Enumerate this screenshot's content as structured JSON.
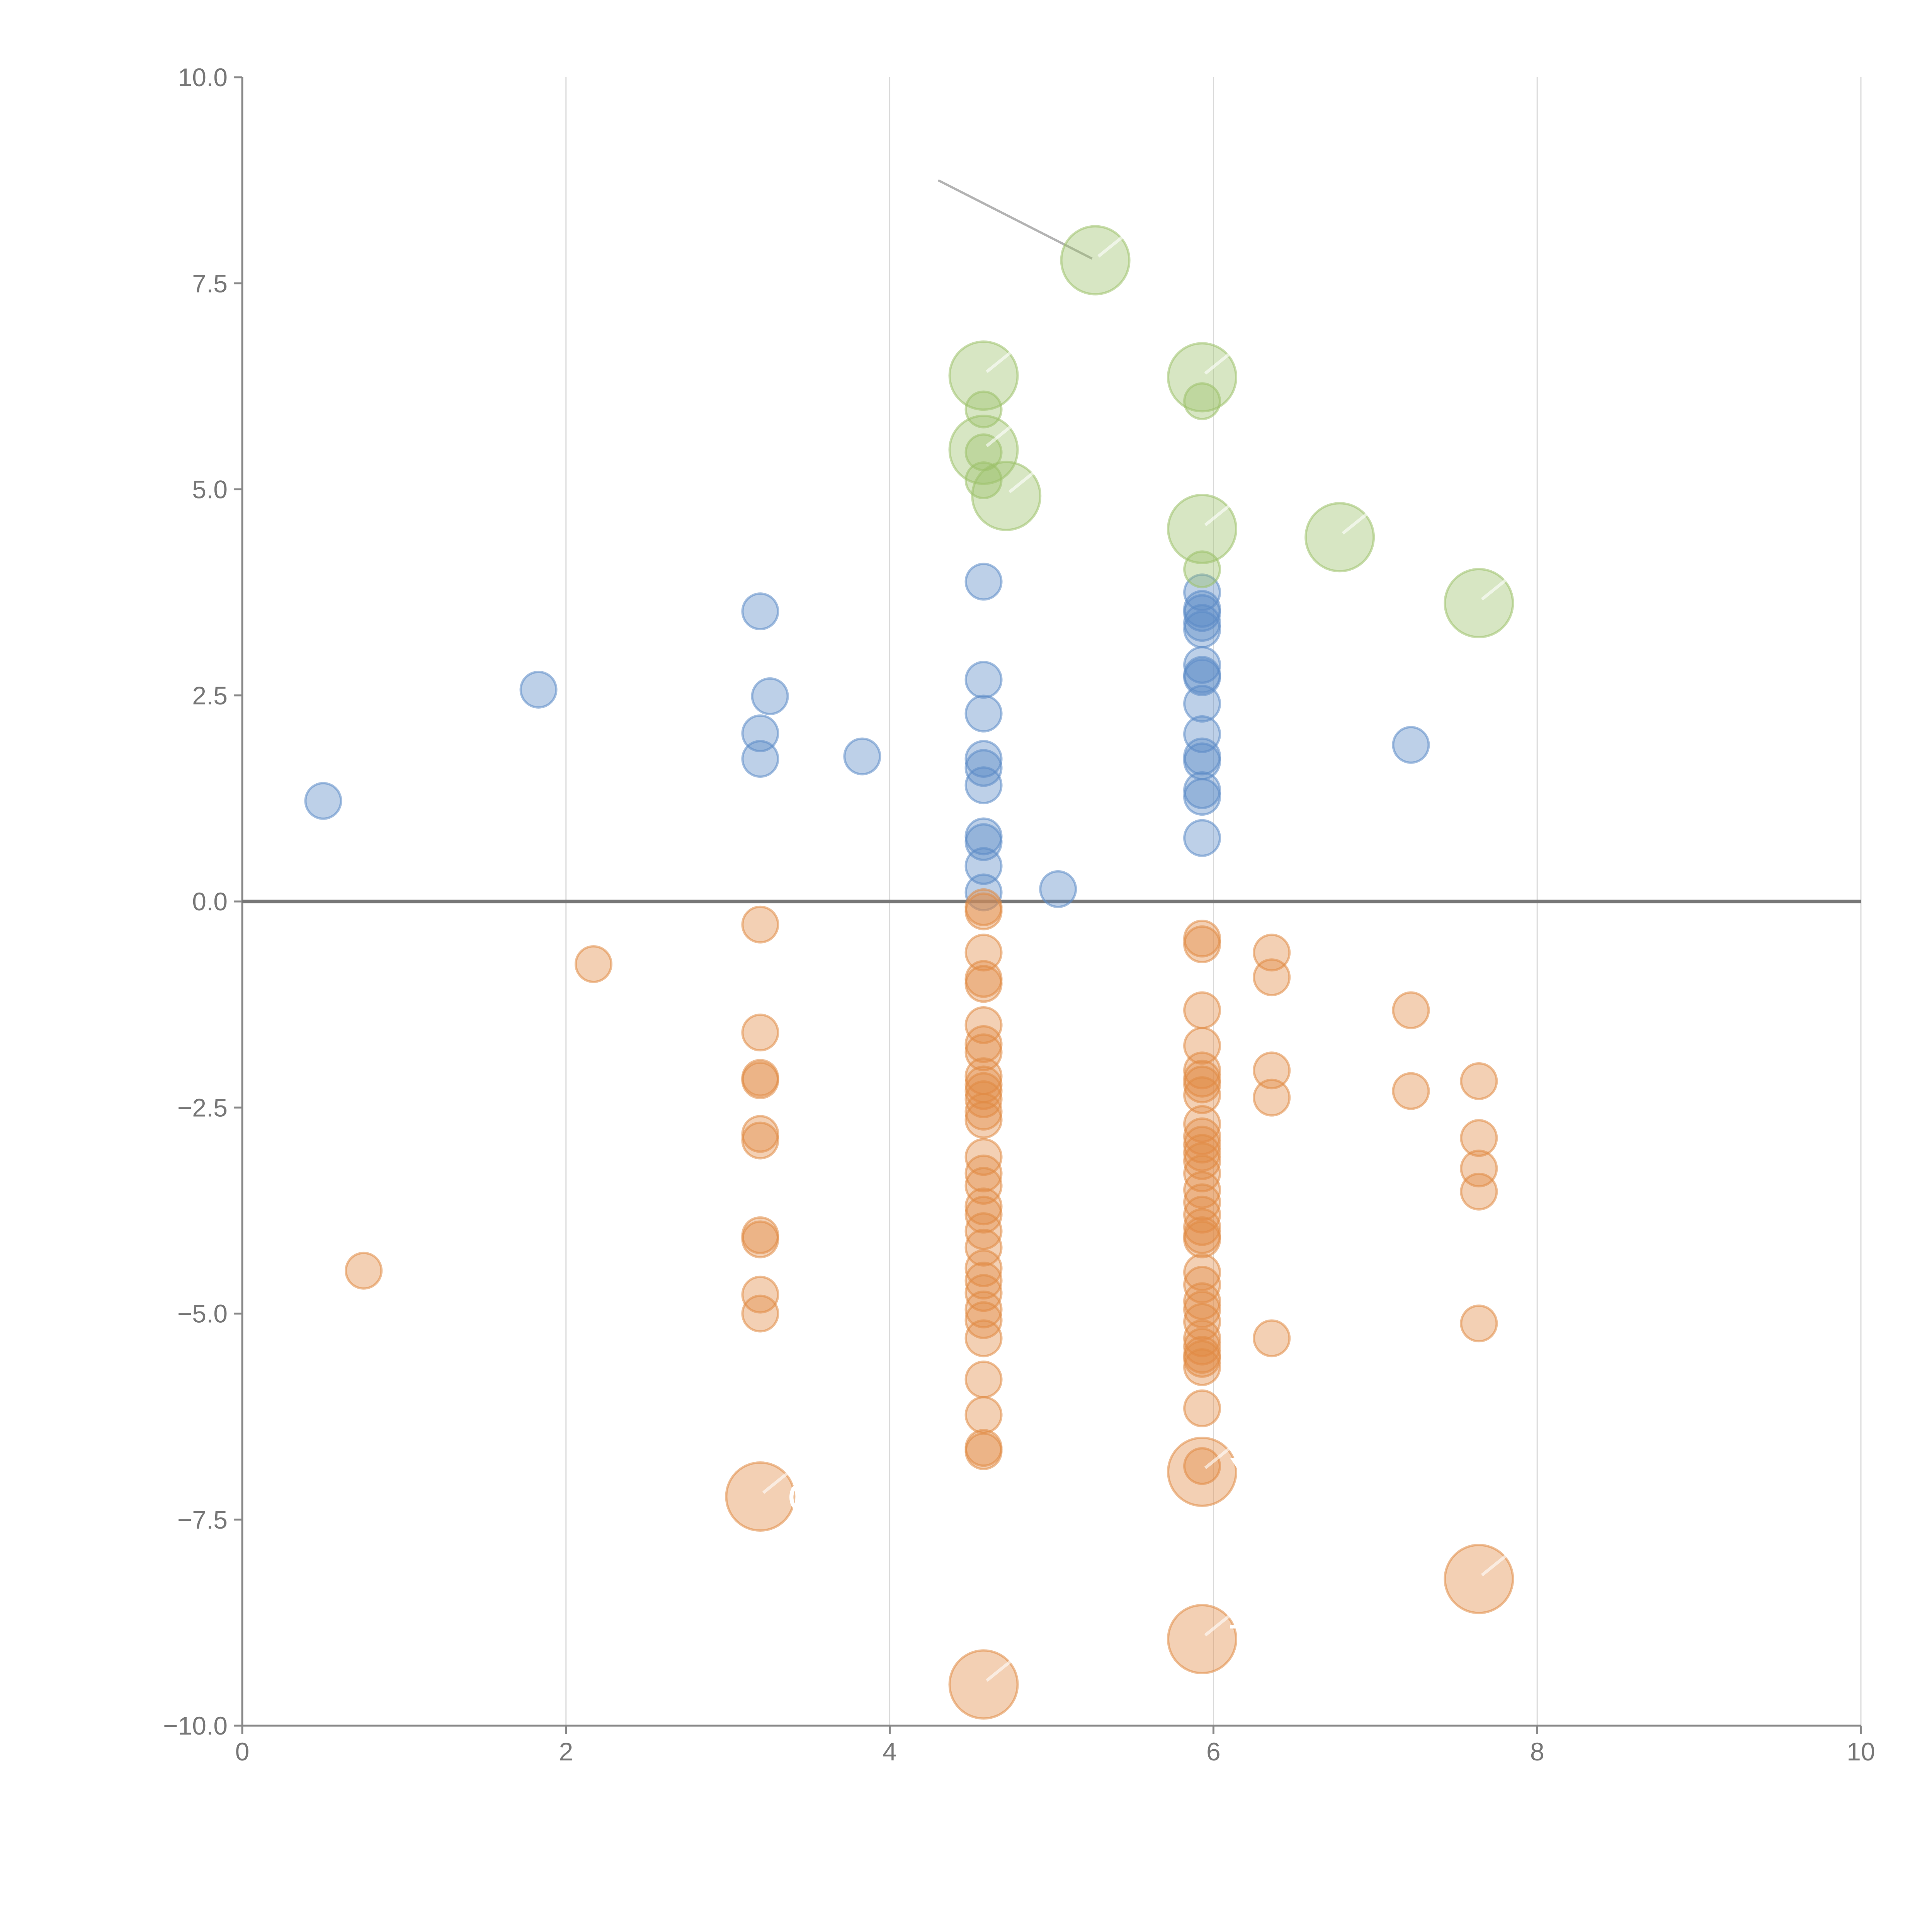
{
  "chart_data": {
    "type": "scatter",
    "title": "",
    "xlabel": "",
    "ylabel": "",
    "xlim": [
      0,
      10
    ],
    "ylim": [
      -10,
      10
    ],
    "x_ticks": [
      "0",
      "2",
      "4",
      "6",
      "8",
      "10"
    ],
    "y_ticks": [
      "10.0",
      "7.5",
      "5.0",
      "2.5",
      "0.0",
      "−2.5",
      "−5.0",
      "−7.5",
      "−10.0"
    ],
    "grid": "vertical",
    "zero_line": 0,
    "legend": "none",
    "series": [
      {
        "name": "blue",
        "color": "#5b8ac6",
        "size": "small",
        "points": [
          [
            0.5,
            1.22
          ],
          [
            1.83,
            2.57
          ],
          [
            3.2,
            3.52
          ],
          [
            3.26,
            2.49
          ],
          [
            3.2,
            2.04
          ],
          [
            3.2,
            1.73
          ],
          [
            3.83,
            1.76
          ],
          [
            4.58,
            3.88
          ],
          [
            4.58,
            2.69
          ],
          [
            4.58,
            2.28
          ],
          [
            4.58,
            1.73
          ],
          [
            4.58,
            1.62
          ],
          [
            4.58,
            1.41
          ],
          [
            4.58,
            0.79
          ],
          [
            4.58,
            0.72
          ],
          [
            4.58,
            0.43
          ],
          [
            4.58,
            0.11
          ],
          [
            5.04,
            0.15
          ],
          [
            5.93,
            3.75
          ],
          [
            5.93,
            3.55
          ],
          [
            5.93,
            3.5
          ],
          [
            5.93,
            3.38
          ],
          [
            5.93,
            3.3
          ],
          [
            5.93,
            2.87
          ],
          [
            5.93,
            2.75
          ],
          [
            5.93,
            2.72
          ],
          [
            5.93,
            2.4
          ],
          [
            5.93,
            2.03
          ],
          [
            5.93,
            1.76
          ],
          [
            5.93,
            1.7
          ],
          [
            5.93,
            1.35
          ],
          [
            5.93,
            1.27
          ],
          [
            5.93,
            0.77
          ],
          [
            7.22,
            1.9
          ]
        ]
      },
      {
        "name": "orange",
        "color": "#e08a44",
        "size": "small",
        "points": [
          [
            0.75,
            -4.48
          ],
          [
            2.17,
            -0.76
          ],
          [
            3.2,
            -0.28
          ],
          [
            3.2,
            -1.59
          ],
          [
            3.2,
            -2.14
          ],
          [
            3.2,
            -2.17
          ],
          [
            3.2,
            -2.82
          ],
          [
            3.2,
            -2.9
          ],
          [
            3.2,
            -4.05
          ],
          [
            3.2,
            -4.1
          ],
          [
            3.2,
            -4.77
          ],
          [
            3.2,
            -5.0
          ],
          [
            4.58,
            -0.07
          ],
          [
            4.58,
            -0.12
          ],
          [
            4.58,
            -0.62
          ],
          [
            4.58,
            -0.94
          ],
          [
            4.58,
            -1.0
          ],
          [
            4.58,
            -1.5
          ],
          [
            4.58,
            -1.73
          ],
          [
            4.58,
            -1.83
          ],
          [
            4.58,
            -2.12
          ],
          [
            4.58,
            -2.22
          ],
          [
            4.58,
            -2.3
          ],
          [
            4.58,
            -2.4
          ],
          [
            4.58,
            -2.55
          ],
          [
            4.58,
            -2.65
          ],
          [
            4.58,
            -3.1
          ],
          [
            4.58,
            -3.3
          ],
          [
            4.58,
            -3.45
          ],
          [
            4.58,
            -3.7
          ],
          [
            4.58,
            -3.8
          ],
          [
            4.58,
            -4.0
          ],
          [
            4.58,
            -4.2
          ],
          [
            4.58,
            -4.45
          ],
          [
            4.58,
            -4.6
          ],
          [
            4.58,
            -4.75
          ],
          [
            4.58,
            -4.95
          ],
          [
            4.58,
            -5.08
          ],
          [
            4.58,
            -5.3
          ],
          [
            4.58,
            -5.8
          ],
          [
            4.58,
            -6.23
          ],
          [
            4.58,
            -6.63
          ],
          [
            4.58,
            -6.67
          ],
          [
            5.93,
            -0.45
          ],
          [
            5.93,
            -0.52
          ],
          [
            5.93,
            -1.32
          ],
          [
            5.93,
            -1.75
          ],
          [
            5.93,
            -2.05
          ],
          [
            5.93,
            -2.15
          ],
          [
            5.93,
            -2.22
          ],
          [
            5.93,
            -2.35
          ],
          [
            5.93,
            -2.7
          ],
          [
            5.93,
            -2.85
          ],
          [
            5.93,
            -2.95
          ],
          [
            5.93,
            -3.05
          ],
          [
            5.93,
            -3.15
          ],
          [
            5.93,
            -3.3
          ],
          [
            5.93,
            -3.5
          ],
          [
            5.93,
            -3.65
          ],
          [
            5.93,
            -3.8
          ],
          [
            5.93,
            -3.95
          ],
          [
            5.93,
            -4.05
          ],
          [
            5.93,
            -4.1
          ],
          [
            5.93,
            -4.5
          ],
          [
            5.93,
            -4.65
          ],
          [
            5.93,
            -4.85
          ],
          [
            5.93,
            -4.95
          ],
          [
            5.93,
            -5.1
          ],
          [
            5.93,
            -5.3
          ],
          [
            5.93,
            -5.4
          ],
          [
            5.93,
            -5.5
          ],
          [
            5.93,
            -5.55
          ],
          [
            5.93,
            -5.65
          ],
          [
            5.93,
            -6.15
          ],
          [
            5.93,
            -6.85
          ],
          [
            6.36,
            -0.62
          ],
          [
            6.36,
            -0.92
          ],
          [
            6.36,
            -2.05
          ],
          [
            6.36,
            -2.38
          ],
          [
            6.36,
            -5.3
          ],
          [
            7.22,
            -1.32
          ],
          [
            7.22,
            -2.3
          ],
          [
            7.64,
            -2.18
          ],
          [
            7.64,
            -2.87
          ],
          [
            7.64,
            -3.24
          ],
          [
            7.64,
            -3.52
          ],
          [
            7.64,
            -5.12
          ]
        ]
      },
      {
        "name": "green",
        "color": "#9cc16a",
        "size": "small",
        "points": [
          [
            4.58,
            5.97
          ],
          [
            4.58,
            5.45
          ],
          [
            4.58,
            5.11
          ],
          [
            5.93,
            6.07
          ],
          [
            5.93,
            4.03
          ]
        ]
      }
    ],
    "bubbles": [
      {
        "series": "green",
        "x": 5.27,
        "y": 7.78,
        "size": "large",
        "label": ""
      },
      {
        "series": "green",
        "x": 4.58,
        "y": 6.38,
        "size": "large",
        "label": ""
      },
      {
        "series": "green",
        "x": 5.93,
        "y": 6.36,
        "size": "large",
        "label": ""
      },
      {
        "series": "green",
        "x": 4.58,
        "y": 5.48,
        "size": "large",
        "label": ""
      },
      {
        "series": "green",
        "x": 4.72,
        "y": 4.92,
        "size": "large",
        "label": ""
      },
      {
        "series": "green",
        "x": 5.93,
        "y": 4.52,
        "size": "large",
        "label": ""
      },
      {
        "series": "green",
        "x": 6.78,
        "y": 4.42,
        "size": "large",
        "label": ""
      },
      {
        "series": "green",
        "x": 7.64,
        "y": 3.62,
        "size": "large",
        "label": ""
      },
      {
        "series": "orange",
        "x": 3.2,
        "y": -7.22,
        "size": "large",
        "label": "C"
      },
      {
        "series": "orange",
        "x": 5.93,
        "y": -6.92,
        "size": "large",
        "label": "Y"
      },
      {
        "series": "orange",
        "x": 7.64,
        "y": -8.22,
        "size": "large",
        "label": ""
      },
      {
        "series": "orange",
        "x": 5.93,
        "y": -8.95,
        "size": "large",
        "label": "T"
      },
      {
        "series": "orange",
        "x": 4.58,
        "y": -9.5,
        "size": "large",
        "label": ""
      }
    ],
    "annotation_line": {
      "from": [
        4.3,
        8.75
      ],
      "to": [
        5.25,
        7.8
      ]
    }
  }
}
